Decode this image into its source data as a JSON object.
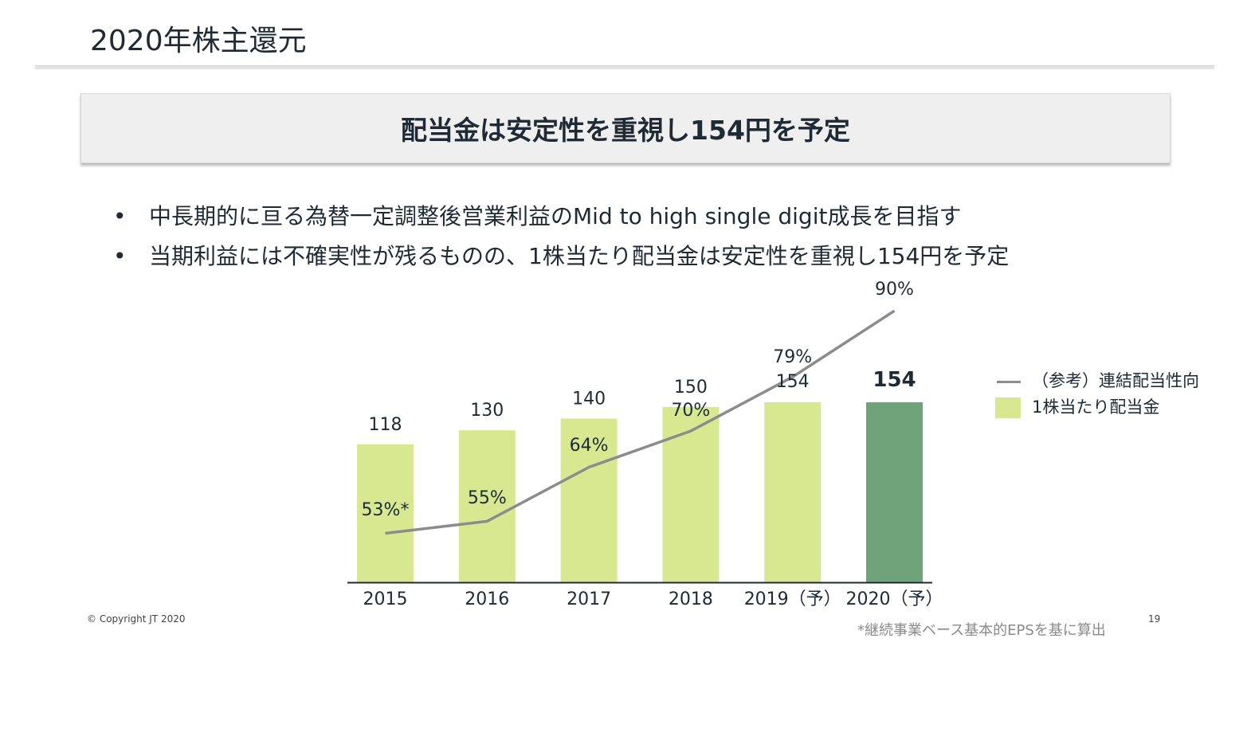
{
  "page": {
    "title": "2020年株主還元",
    "banner": "配当金は安定性を重視し154円を予定",
    "bullets": [
      "中長期的に亘る為替一定調整後営業利益のMid to high single digit成長を目指す",
      "当期利益には不確実性が残るものの、1株当たり配当金は安定性を重視し154円を予定"
    ],
    "bullet_glyph": "•",
    "copyright": "© Copyright JT 2020",
    "page_number": "19",
    "footnote": "*継続事業ベース基本的EPSを基に算出"
  },
  "legend": {
    "line_label": "（参考）連結配当性向",
    "bar_label": "1株当たり配当金"
  },
  "chart_data": {
    "type": "bar",
    "categories": [
      "2015",
      "2016",
      "2017",
      "2018",
      "2019（予）",
      "2020（予）"
    ],
    "series": [
      {
        "name": "1株当たり配当金",
        "type": "bar",
        "values": [
          118,
          130,
          140,
          150,
          154,
          154
        ],
        "labels": [
          "118",
          "130",
          "140",
          "150",
          "154",
          "154"
        ]
      },
      {
        "name": "（参考）連結配当性向",
        "type": "line",
        "values": [
          53,
          55,
          64,
          70,
          79,
          90
        ],
        "labels": [
          "53%*",
          "55%",
          "64%",
          "70%",
          "79%",
          "90%"
        ]
      }
    ],
    "highlight_category": "2020（予）",
    "colors": {
      "bar": "#d8e891",
      "bar_highlight": "#6fa37a",
      "line": "#8c8c8c",
      "axis": "#1f2a35",
      "text": "#1f2a35"
    },
    "legend_position": "right",
    "grid": false
  }
}
